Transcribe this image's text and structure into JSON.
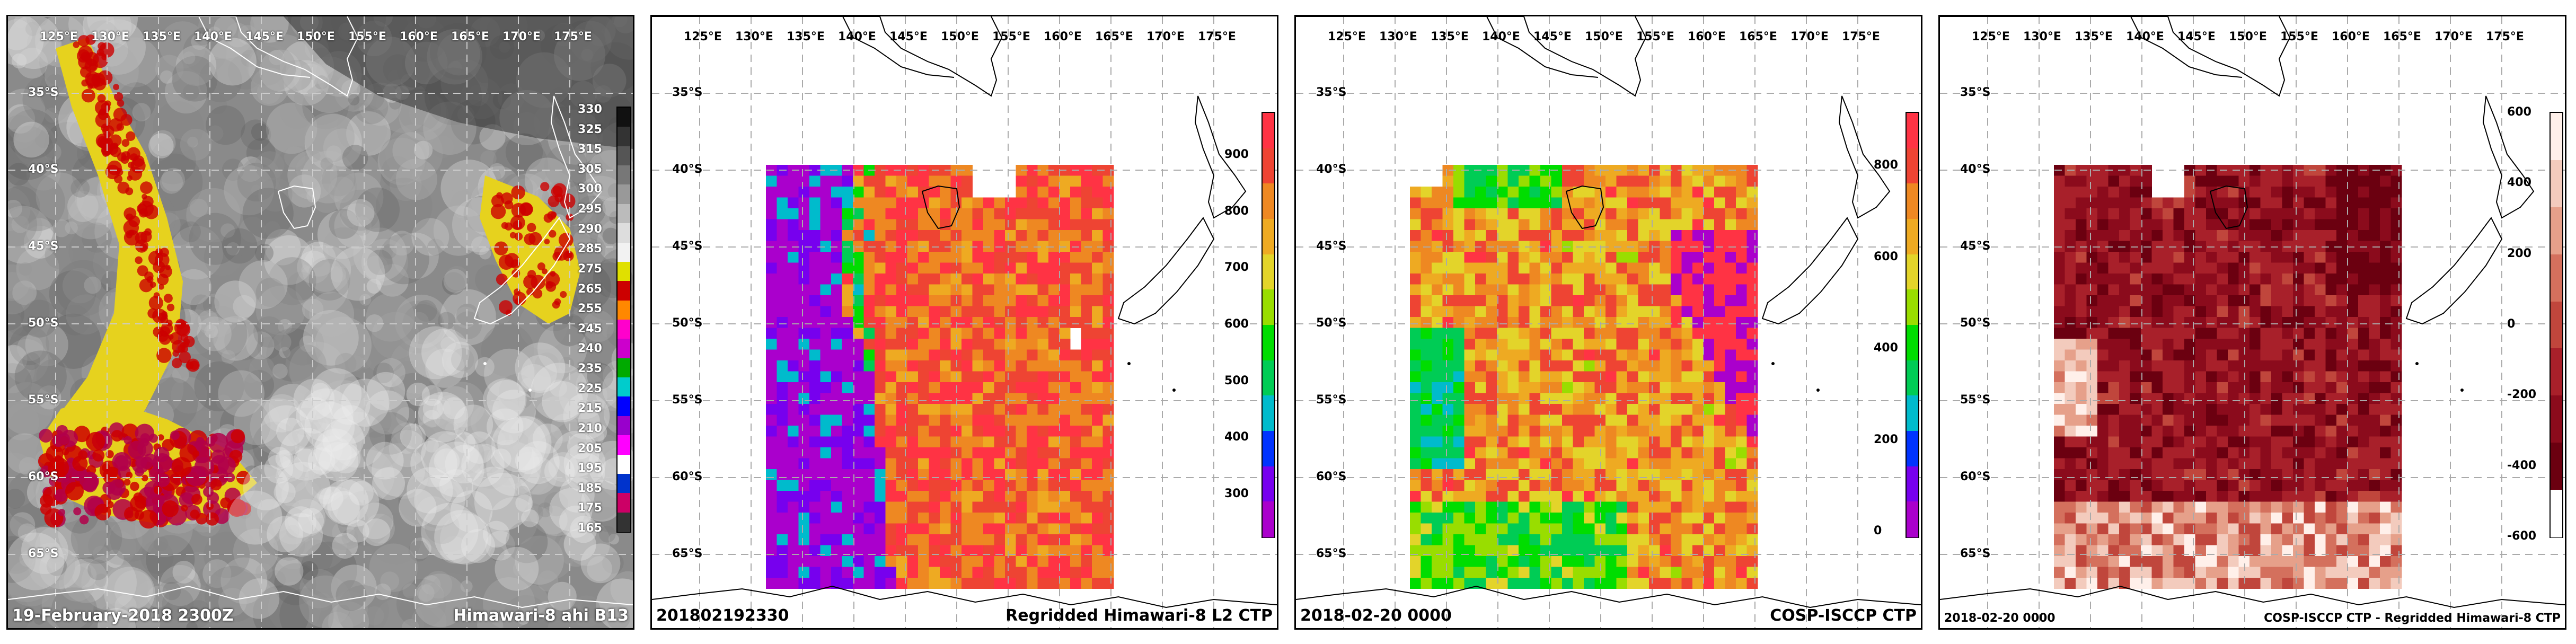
{
  "lon_labels": [
    "125°E",
    "130°E",
    "135°E",
    "140°E",
    "145°E",
    "150°E",
    "155°E",
    "160°E",
    "165°E",
    "170°E",
    "175°E"
  ],
  "lat_labels": [
    "35°S",
    "40°S",
    "45°S",
    "50°S",
    "55°S",
    "60°S",
    "65°S"
  ],
  "panels": [
    {
      "title": "Himawari-8 ahi B13",
      "date": "19-February-2018 2300Z",
      "colorbar_ticks": [
        "330",
        "325",
        "315",
        "305",
        "300",
        "295",
        "290",
        "285",
        "275",
        "265",
        "255",
        "245",
        "240",
        "235",
        "225",
        "215",
        "210",
        "205",
        "195",
        "185",
        "175",
        "165"
      ],
      "colorbar_colors": [
        "#111111",
        "#333333",
        "#555555",
        "#777777",
        "#999999",
        "#bbbbbb",
        "#dddddd",
        "#f2f2f2",
        "#e0e000",
        "#cc0000",
        "#ff8800",
        "#ff00cc",
        "#cc00cc",
        "#00aa00",
        "#00cccc",
        "#0000ff",
        "#9900cc",
        "#ff00ff",
        "#ffffff",
        "#0033cc",
        "#cc0066",
        "#333333"
      ]
    },
    {
      "title": "Regridded Himawari-8 L2 CTP",
      "date": "201802192330",
      "colorbar_ticks": [
        "900",
        "800",
        "700",
        "600",
        "500",
        "400",
        "300"
      ]
    },
    {
      "title": "COSP-ISCCP CTP",
      "date": "2018-02-20 0000",
      "colorbar_ticks": [
        "800",
        "600",
        "400",
        "200",
        "0"
      ]
    },
    {
      "title": "COSP-ISCCP CTP - Regridded Himawari-8 CTP",
      "date": "2018-02-20 0000",
      "colorbar_ticks": [
        "600",
        "400",
        "200",
        "0",
        "-200",
        "-400",
        "-600"
      ]
    }
  ],
  "colors": {
    "ctp_scale": [
      "#aa00cc",
      "#7700ee",
      "#0033ff",
      "#00bbcc",
      "#00cc55",
      "#00dd00",
      "#99dd00",
      "#e3d42a",
      "#eeaa22",
      "#ee8822",
      "#ee4433",
      "#ff3344"
    ],
    "diff_scale": [
      "#6b0010",
      "#8b0b1c",
      "#a8202a",
      "#c0463c",
      "#d4705d",
      "#e6a08a",
      "#f3cbbd",
      "#fff0ea"
    ]
  }
}
